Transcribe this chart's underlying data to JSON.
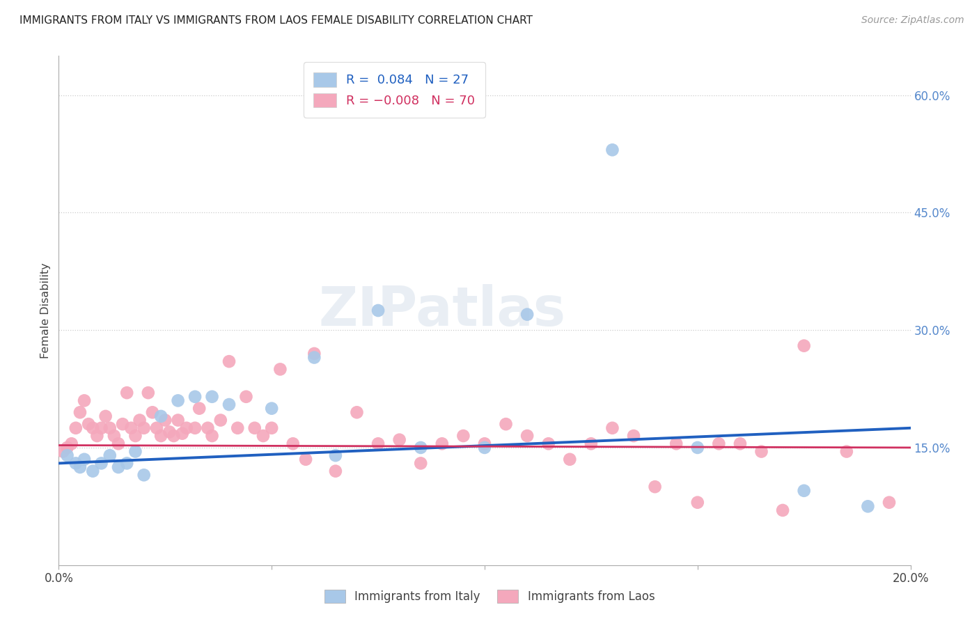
{
  "title": "IMMIGRANTS FROM ITALY VS IMMIGRANTS FROM LAOS FEMALE DISABILITY CORRELATION CHART",
  "source": "Source: ZipAtlas.com",
  "ylabel": "Female Disability",
  "xlim": [
    0.0,
    0.2
  ],
  "ylim": [
    0.0,
    0.65
  ],
  "italy_color": "#a8c8e8",
  "laos_color": "#f4a8bc",
  "italy_line_color": "#2060c0",
  "laos_line_color": "#d03060",
  "italy_R": 0.084,
  "italy_N": 27,
  "laos_R": -0.008,
  "laos_N": 70,
  "italy_x": [
    0.002,
    0.004,
    0.005,
    0.006,
    0.008,
    0.01,
    0.012,
    0.014,
    0.016,
    0.018,
    0.02,
    0.024,
    0.028,
    0.032,
    0.036,
    0.04,
    0.05,
    0.06,
    0.065,
    0.075,
    0.085,
    0.1,
    0.11,
    0.13,
    0.15,
    0.175,
    0.19
  ],
  "italy_y": [
    0.14,
    0.13,
    0.125,
    0.135,
    0.12,
    0.13,
    0.14,
    0.125,
    0.13,
    0.145,
    0.115,
    0.19,
    0.21,
    0.215,
    0.215,
    0.205,
    0.2,
    0.265,
    0.14,
    0.325,
    0.15,
    0.15,
    0.32,
    0.53,
    0.15,
    0.095,
    0.075
  ],
  "laos_x": [
    0.001,
    0.002,
    0.003,
    0.004,
    0.005,
    0.006,
    0.007,
    0.008,
    0.009,
    0.01,
    0.011,
    0.012,
    0.013,
    0.014,
    0.015,
    0.016,
    0.017,
    0.018,
    0.019,
    0.02,
    0.021,
    0.022,
    0.023,
    0.024,
    0.025,
    0.026,
    0.027,
    0.028,
    0.029,
    0.03,
    0.032,
    0.033,
    0.035,
    0.036,
    0.038,
    0.04,
    0.042,
    0.044,
    0.046,
    0.048,
    0.05,
    0.052,
    0.055,
    0.058,
    0.06,
    0.065,
    0.07,
    0.075,
    0.08,
    0.085,
    0.09,
    0.095,
    0.1,
    0.105,
    0.11,
    0.115,
    0.12,
    0.125,
    0.13,
    0.135,
    0.14,
    0.145,
    0.15,
    0.155,
    0.16,
    0.165,
    0.17,
    0.175,
    0.185,
    0.195
  ],
  "laos_y": [
    0.145,
    0.15,
    0.155,
    0.175,
    0.195,
    0.21,
    0.18,
    0.175,
    0.165,
    0.175,
    0.19,
    0.175,
    0.165,
    0.155,
    0.18,
    0.22,
    0.175,
    0.165,
    0.185,
    0.175,
    0.22,
    0.195,
    0.175,
    0.165,
    0.185,
    0.17,
    0.165,
    0.185,
    0.168,
    0.175,
    0.175,
    0.2,
    0.175,
    0.165,
    0.185,
    0.26,
    0.175,
    0.215,
    0.175,
    0.165,
    0.175,
    0.25,
    0.155,
    0.135,
    0.27,
    0.12,
    0.195,
    0.155,
    0.16,
    0.13,
    0.155,
    0.165,
    0.155,
    0.18,
    0.165,
    0.155,
    0.135,
    0.155,
    0.175,
    0.165,
    0.1,
    0.155,
    0.08,
    0.155,
    0.155,
    0.145,
    0.07,
    0.28,
    0.145,
    0.08
  ],
  "italy_trend": [
    0.13,
    0.175
  ],
  "laos_trend": [
    0.153,
    0.15
  ],
  "watermark": "ZIPatlas",
  "bg_color": "#ffffff",
  "grid_color": "#cccccc"
}
